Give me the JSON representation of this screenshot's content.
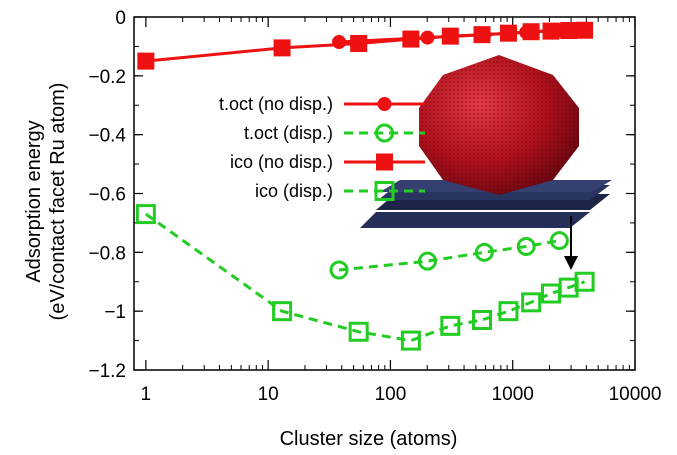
{
  "chart_data": {
    "type": "line",
    "xscale": "log",
    "xlim": [
      0.8,
      10000
    ],
    "ylim": [
      -1.2,
      0
    ],
    "xlabel": "Cluster size (atoms)",
    "ylabel_lines": [
      "Adsorption energy",
      "(eV/contact facet Ru atom)"
    ],
    "x_ticks": [
      1,
      10,
      100,
      1000,
      10000
    ],
    "x_tick_labels": [
      "1",
      "10",
      "100",
      "1000",
      "10000"
    ],
    "y_ticks": [
      0,
      -0.2,
      -0.4,
      -0.6,
      -0.8,
      -1,
      -1.2
    ],
    "y_tick_labels": [
      "0",
      "−0.2",
      "−0.4",
      "−0.6",
      "−0.8",
      "−1",
      "−1.2"
    ],
    "grid": false,
    "legend_position": "center-left",
    "series": [
      {
        "name": "t.oct (no disp.)",
        "color": "#ee1111",
        "line": "solid",
        "marker": "filled-circle",
        "x": [
          38,
          201,
          586,
          1289,
          2406
        ],
        "y": [
          -0.085,
          -0.07,
          -0.06,
          -0.052,
          -0.045
        ]
      },
      {
        "name": "t.oct (disp.)",
        "color": "#22cc22",
        "line": "dashed",
        "marker": "open-circle",
        "x": [
          38,
          201,
          586,
          1289,
          2406
        ],
        "y": [
          -0.86,
          -0.83,
          -0.8,
          -0.78,
          -0.76
        ]
      },
      {
        "name": "ico (no disp.)",
        "color": "#ee1111",
        "line": "solid",
        "marker": "filled-square",
        "x": [
          1,
          13,
          55,
          147,
          309,
          561,
          923,
          1415,
          2057,
          2869,
          3871
        ],
        "y": [
          -0.15,
          -0.105,
          -0.09,
          -0.075,
          -0.065,
          -0.06,
          -0.055,
          -0.05,
          -0.048,
          -0.046,
          -0.045
        ]
      },
      {
        "name": "ico (disp.)",
        "color": "#22cc22",
        "line": "dashed",
        "marker": "open-square",
        "x": [
          1,
          13,
          55,
          147,
          309,
          561,
          923,
          1415,
          2057,
          2869,
          3871
        ],
        "y": [
          -0.67,
          -1.0,
          -1.07,
          -1.1,
          -1.05,
          -1.03,
          -1.0,
          -0.97,
          -0.94,
          -0.92,
          -0.9
        ]
      }
    ]
  }
}
